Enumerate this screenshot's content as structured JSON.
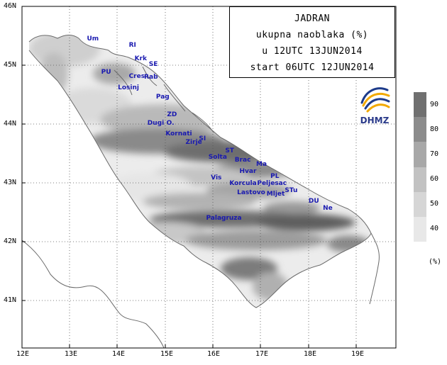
{
  "title": {
    "line1": "JADRAN",
    "line2": "ukupna naoblaka (%)",
    "line3": "u 12UTC 13JUN2014",
    "line4": "start 06UTC 12JUN2014"
  },
  "logo": {
    "text": "DHMZ"
  },
  "axes": {
    "lon_labels": [
      "12E",
      "13E",
      "14E",
      "15E",
      "16E",
      "17E",
      "18E",
      "19E"
    ],
    "lat_labels": [
      "46N",
      "45N",
      "44N",
      "43N",
      "42N",
      "41N"
    ],
    "lon_range": [
      12,
      19.8
    ],
    "lat_range": [
      40.2,
      46
    ]
  },
  "legend": {
    "unit": "(%)",
    "levels": [
      {
        "label": "90",
        "color": "#707070"
      },
      {
        "label": "80",
        "color": "#8c8c8c"
      },
      {
        "label": "70",
        "color": "#a8a8a8"
      },
      {
        "label": "60",
        "color": "#c2c2c2"
      },
      {
        "label": "50",
        "color": "#d6d6d6"
      },
      {
        "label": "40",
        "color": "#e8e8e8"
      }
    ]
  },
  "places": [
    {
      "name": "Um",
      "lon": 13.45,
      "lat": 45.43
    },
    {
      "name": "RI",
      "lon": 14.33,
      "lat": 45.33
    },
    {
      "name": "Krk",
      "lon": 14.45,
      "lat": 45.1
    },
    {
      "name": "SE",
      "lon": 14.75,
      "lat": 45.0
    },
    {
      "name": "PU",
      "lon": 13.75,
      "lat": 44.87
    },
    {
      "name": "Cres",
      "lon": 14.33,
      "lat": 44.8
    },
    {
      "name": "Rab",
      "lon": 14.65,
      "lat": 44.78
    },
    {
      "name": "Losinj",
      "lon": 14.1,
      "lat": 44.6
    },
    {
      "name": "Pag",
      "lon": 14.9,
      "lat": 44.45
    },
    {
      "name": "ZD",
      "lon": 15.13,
      "lat": 44.14
    },
    {
      "name": "Dugi",
      "lon": 14.72,
      "lat": 44.0
    },
    {
      "name": "O.",
      "lon": 15.12,
      "lat": 44.0
    },
    {
      "name": "Kornati",
      "lon": 15.1,
      "lat": 43.82
    },
    {
      "name": "SI",
      "lon": 15.8,
      "lat": 43.73
    },
    {
      "name": "Zirje",
      "lon": 15.52,
      "lat": 43.67
    },
    {
      "name": "ST",
      "lon": 16.35,
      "lat": 43.53
    },
    {
      "name": "Solta",
      "lon": 16.0,
      "lat": 43.42
    },
    {
      "name": "Brac",
      "lon": 16.55,
      "lat": 43.37
    },
    {
      "name": "Ma",
      "lon": 17.0,
      "lat": 43.3
    },
    {
      "name": "Hvar",
      "lon": 16.65,
      "lat": 43.18
    },
    {
      "name": "Vis",
      "lon": 16.05,
      "lat": 43.07
    },
    {
      "name": "PL",
      "lon": 17.3,
      "lat": 43.1
    },
    {
      "name": "Korcula",
      "lon": 16.44,
      "lat": 42.97
    },
    {
      "name": "Peljesac",
      "lon": 17.02,
      "lat": 42.97
    },
    {
      "name": "STu",
      "lon": 17.6,
      "lat": 42.85
    },
    {
      "name": "Lastovo",
      "lon": 16.6,
      "lat": 42.82
    },
    {
      "name": "Mljet",
      "lon": 17.22,
      "lat": 42.8
    },
    {
      "name": "DU",
      "lon": 18.1,
      "lat": 42.68
    },
    {
      "name": "Ne",
      "lon": 18.4,
      "lat": 42.55
    },
    {
      "name": "Palagruza",
      "lon": 15.95,
      "lat": 42.38
    }
  ]
}
